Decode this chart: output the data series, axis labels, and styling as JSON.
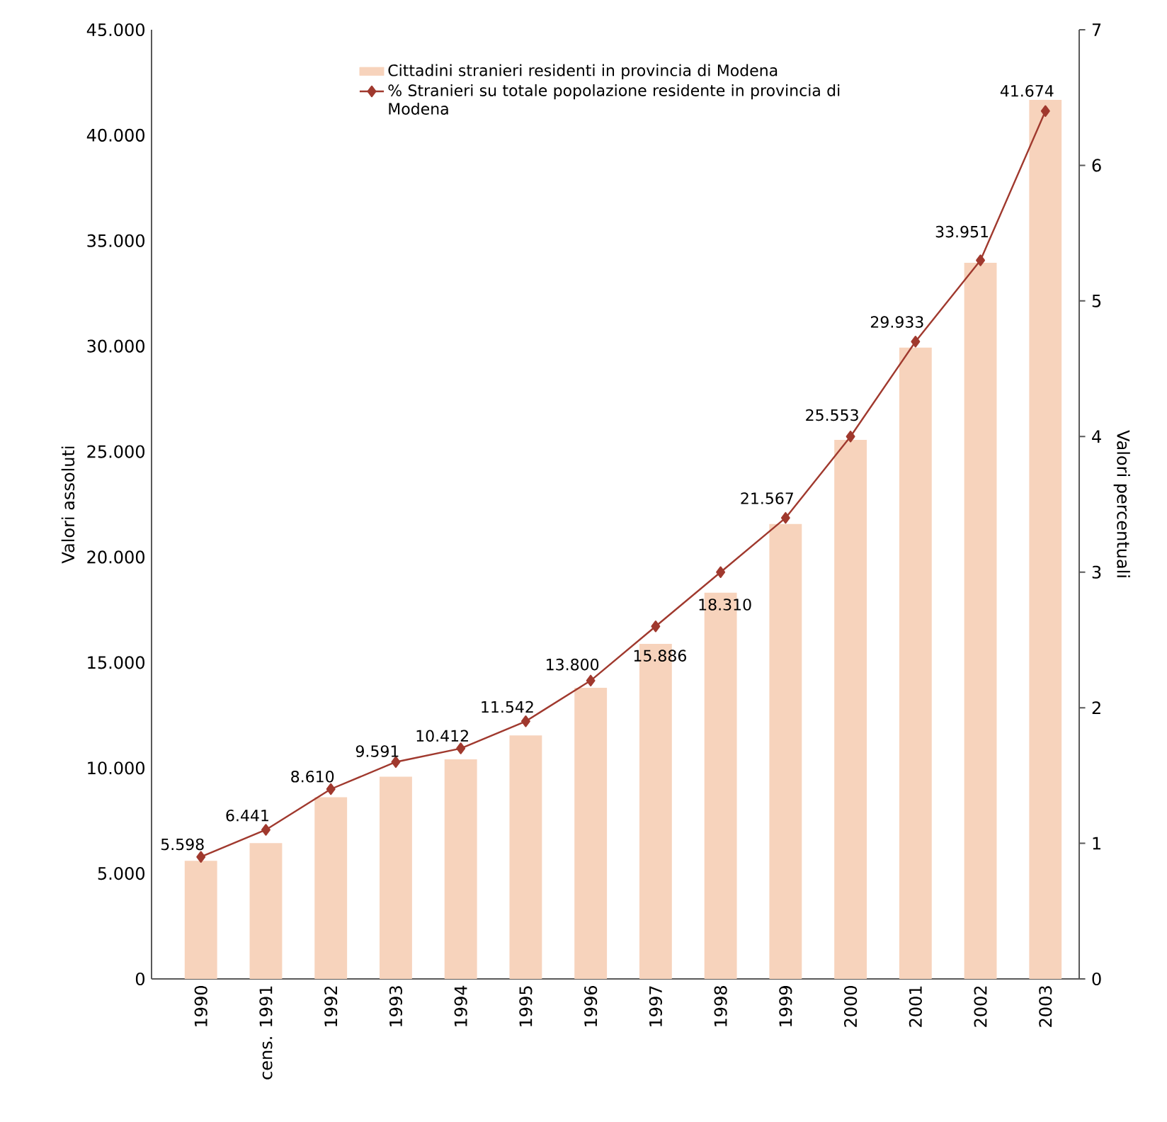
{
  "chart_data": {
    "type": "bar",
    "categories": [
      "1990",
      "cens. 1991",
      "1992",
      "1993",
      "1994",
      "1995",
      "1996",
      "1997",
      "1998",
      "1999",
      "2000",
      "2001",
      "2002",
      "2003"
    ],
    "series": [
      {
        "name": "Cittadini stranieri residenti in provincia di Modena",
        "color": "#f7d3bc",
        "values": [
          5598,
          6441,
          8610,
          9591,
          10412,
          11542,
          13800,
          15886,
          18310,
          21567,
          25553,
          29933,
          33951,
          41674
        ],
        "value_labels": [
          "5.598",
          "6.441",
          "8.610",
          "9.591",
          "10.412",
          "11.542",
          "13.800",
          "15.886",
          "18.310",
          "21.567",
          "25.553",
          "29.933",
          "33.951",
          "41.674"
        ]
      },
      {
        "name": "% Stranieri su totale popolazione residente in provincia di Modena",
        "type": "line",
        "axis": "y2",
        "color": "#a0392e",
        "marker": "diamond",
        "values": [
          0.9,
          1.1,
          1.4,
          1.6,
          1.7,
          1.9,
          2.2,
          2.6,
          3.0,
          3.4,
          4.0,
          4.7,
          5.3,
          6.4
        ]
      }
    ],
    "ylabel": "Valori assoluti",
    "y2label": "Valori percentuali",
    "ylim": [
      0,
      45000
    ],
    "yticks": [
      {
        "value": 0,
        "label": "0"
      },
      {
        "value": 5000,
        "label": "5.000"
      },
      {
        "value": 10000,
        "label": "10.000"
      },
      {
        "value": 15000,
        "label": "15.000"
      },
      {
        "value": 20000,
        "label": "20.000"
      },
      {
        "value": 25000,
        "label": "25.000"
      },
      {
        "value": 30000,
        "label": "30.000"
      },
      {
        "value": 35000,
        "label": "35.000"
      },
      {
        "value": 40000,
        "label": "40.000"
      },
      {
        "value": 45000,
        "label": "45.000"
      }
    ],
    "y2lim": [
      0,
      7
    ],
    "y2ticks": [
      0,
      1,
      2,
      3,
      4,
      5,
      6,
      7
    ],
    "legend": "top",
    "grid": false
  }
}
